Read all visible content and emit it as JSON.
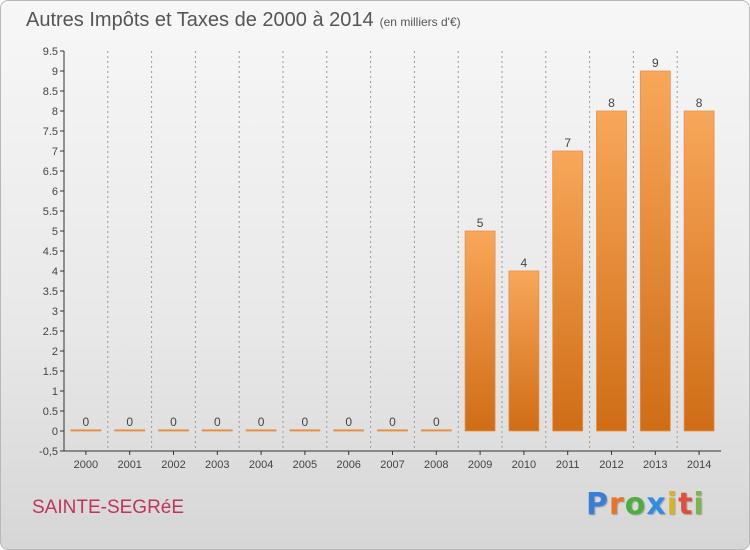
{
  "title": "Autres Impôts et Taxes de 2000 à 2014",
  "unit": "(en milliers d'€)",
  "city": "SAINTE-SEGRéE",
  "logo": {
    "letters": [
      "P",
      "r",
      "o",
      "x",
      "i",
      "t",
      "i"
    ],
    "colors": [
      "#3a7fd5",
      "#e8742a",
      "#4cae3c",
      "#2f8ee0",
      "#d8b323",
      "#e04f3a",
      "#7ab648"
    ]
  },
  "colors": {
    "bar_top": "#f8a75a",
    "bar_bottom": "#cf6d15",
    "axis": "#333333",
    "grid": "#999999",
    "city": "#c0345e"
  },
  "chart_data": {
    "type": "bar",
    "categories": [
      "2000",
      "2001",
      "2002",
      "2003",
      "2004",
      "2005",
      "2006",
      "2007",
      "2008",
      "2009",
      "2010",
      "2011",
      "2012",
      "2013",
      "2014"
    ],
    "values": [
      0,
      0,
      0,
      0,
      0,
      0,
      0,
      0,
      0,
      5,
      4,
      7,
      8,
      9,
      8
    ],
    "data_labels": [
      "0",
      "0",
      "0",
      "0",
      "0",
      "0",
      "0",
      "0",
      "0",
      "5",
      "4",
      "7",
      "8",
      "9",
      "8"
    ],
    "ylim": [
      -0.5,
      9.5
    ],
    "yticks": [
      "-0,5",
      "0",
      "0.5",
      "1",
      "1.5",
      "2",
      "2.5",
      "3",
      "3.5",
      "4",
      "4.5",
      "5",
      "5.5",
      "6",
      "6.5",
      "7",
      "7.5",
      "8",
      "8.5",
      "9",
      "9.5"
    ],
    "ytick_values": [
      -0.5,
      0,
      0.5,
      1,
      1.5,
      2,
      2.5,
      3,
      3.5,
      4,
      4.5,
      5,
      5.5,
      6,
      6.5,
      7,
      7.5,
      8,
      8.5,
      9,
      9.5
    ],
    "grid": true
  }
}
